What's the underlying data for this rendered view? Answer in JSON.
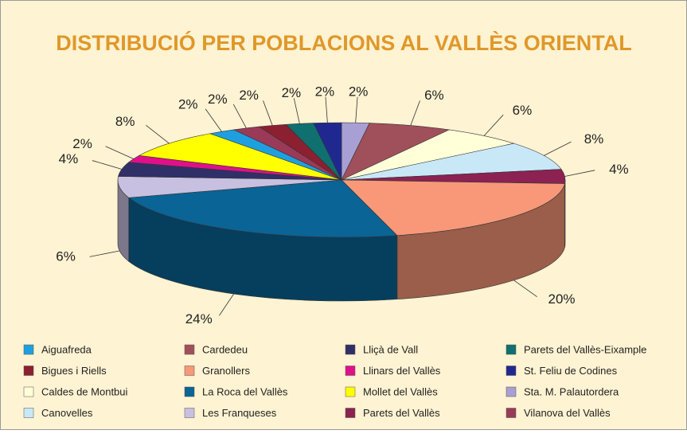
{
  "chart_data": {
    "type": "pie",
    "title": "DISTRIBUCIÓ PER POBLACIONS AL VALLÈS ORIENTAL",
    "categories": [
      "Sta. M. Palautordera",
      "Cardedeu",
      "Caldes de Montbui",
      "Canovelles",
      "Parets del Vallès",
      "Granollers",
      "La Roca del Vallès",
      "Les Franqueses",
      "Lliçà de Vall",
      "Llinars del Vallès",
      "Mollet del Vallès",
      "Aiguafreda",
      "Vilanova del Vallès",
      "Bigues i Riells",
      "Parets del Vallès-Eixample",
      "St. Feliu de Codines"
    ],
    "values": [
      2,
      6,
      6,
      8,
      4,
      20,
      24,
      6,
      4,
      2,
      8,
      2,
      2,
      2,
      2,
      2
    ],
    "value_labels": [
      "2%",
      "6%",
      "6%",
      "8%",
      "4%",
      "20%",
      "24%",
      "6%",
      "4%",
      "2%",
      "8%",
      "2%",
      "2%",
      "2%",
      "2%",
      "2%"
    ],
    "colors": [
      "#a8a0d4",
      "#a0505a",
      "#ffffd8",
      "#c8e8f8",
      "#8b2252",
      "#f89878",
      "#0a6496",
      "#c8c0e0",
      "#303068",
      "#e0108a",
      "#ffff00",
      "#1ea0e0",
      "#9a3a58",
      "#8b2030",
      "#107070",
      "#202890"
    ]
  }
}
